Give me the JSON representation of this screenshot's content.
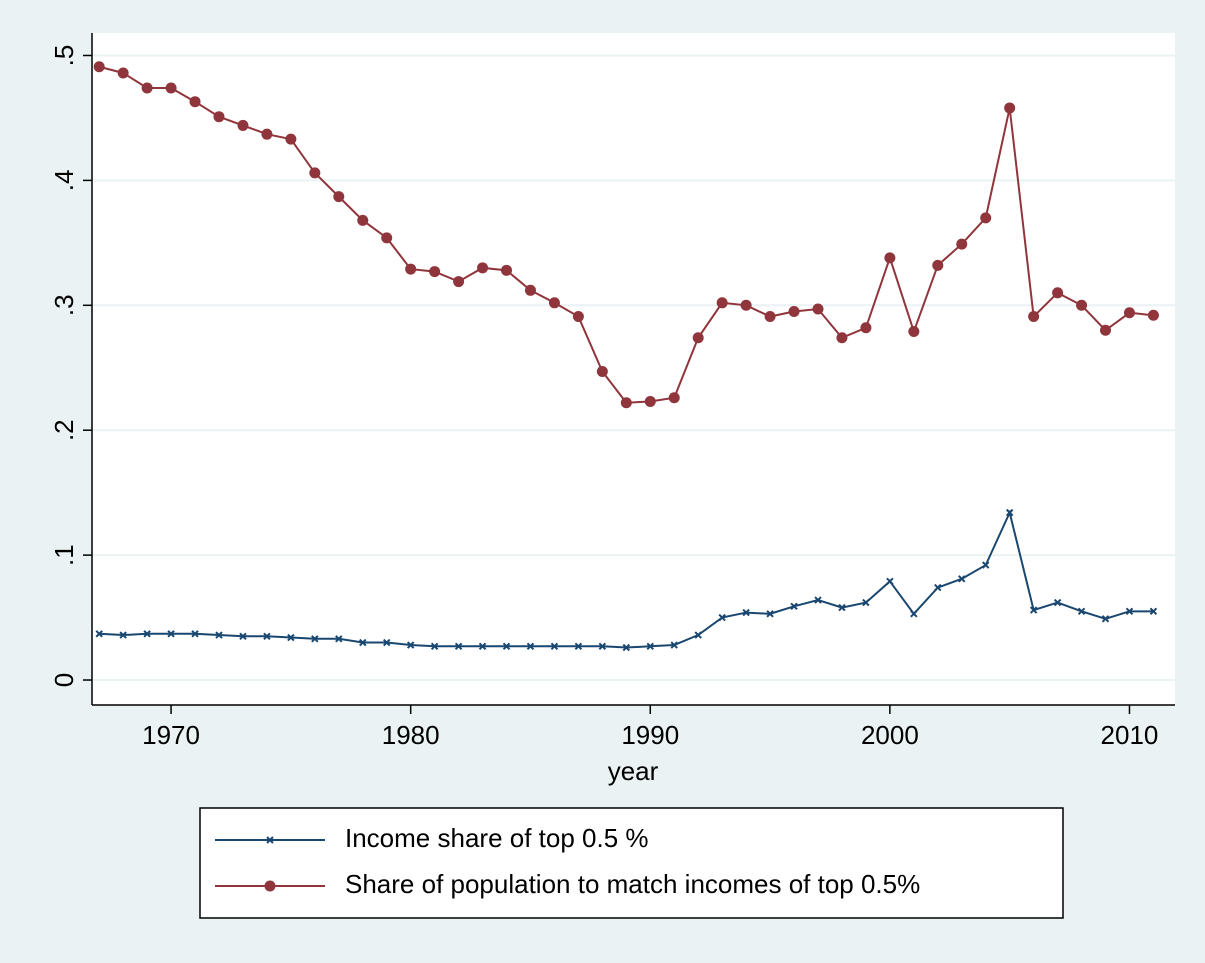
{
  "chart_data": {
    "type": "line",
    "x": [
      1967,
      1968,
      1969,
      1970,
      1971,
      1972,
      1973,
      1974,
      1975,
      1976,
      1977,
      1978,
      1979,
      1980,
      1981,
      1982,
      1983,
      1984,
      1985,
      1986,
      1987,
      1988,
      1989,
      1990,
      1991,
      1992,
      1993,
      1994,
      1995,
      1996,
      1997,
      1998,
      1999,
      2000,
      2001,
      2002,
      2003,
      2004,
      2005,
      2006,
      2007,
      2008,
      2009,
      2010,
      2011
    ],
    "series": [
      {
        "name": "Income share of top 0.5 %",
        "color": "#1a476f",
        "marker": "x",
        "values": [
          0.037,
          0.036,
          0.037,
          0.037,
          0.037,
          0.036,
          0.035,
          0.035,
          0.034,
          0.033,
          0.033,
          0.03,
          0.03,
          0.028,
          0.027,
          0.027,
          0.027,
          0.027,
          0.027,
          0.027,
          0.027,
          0.027,
          0.026,
          0.027,
          0.028,
          0.036,
          0.05,
          0.054,
          0.053,
          0.059,
          0.064,
          0.058,
          0.062,
          0.079,
          0.053,
          0.074,
          0.081,
          0.092,
          0.134,
          0.056,
          0.062,
          0.055,
          0.049,
          0.055,
          0.055
        ]
      },
      {
        "name": "Share of population to match incomes of top 0.5%",
        "color": "#90353b",
        "marker": "circle",
        "values": [
          0.491,
          0.486,
          0.474,
          0.474,
          0.463,
          0.451,
          0.444,
          0.437,
          0.433,
          0.406,
          0.387,
          0.368,
          0.354,
          0.329,
          0.327,
          0.319,
          0.33,
          0.328,
          0.312,
          0.302,
          0.291,
          0.247,
          0.222,
          0.223,
          0.226,
          0.274,
          0.302,
          0.3,
          0.291,
          0.295,
          0.297,
          0.274,
          0.282,
          0.338,
          0.279,
          0.332,
          0.349,
          0.37,
          0.458,
          0.291,
          0.31,
          0.3,
          0.28,
          0.294,
          0.292
        ]
      }
    ],
    "x_label": "year",
    "xlim": [
      1966.7,
      2011.9
    ],
    "xticks": [
      1970,
      1980,
      1990,
      2000,
      2010
    ],
    "ylim": [
      -0.02,
      0.518
    ],
    "yticks": [
      0,
      {
        "value": 0.1,
        "label": ".1"
      },
      {
        "value": 0.2,
        "label": ".2"
      },
      {
        "value": 0.3,
        "label": ".3"
      },
      {
        "value": 0.4,
        "label": ".4"
      },
      {
        "value": 0.5,
        "label": ".5"
      }
    ],
    "grid": true,
    "legend": "bottom"
  }
}
